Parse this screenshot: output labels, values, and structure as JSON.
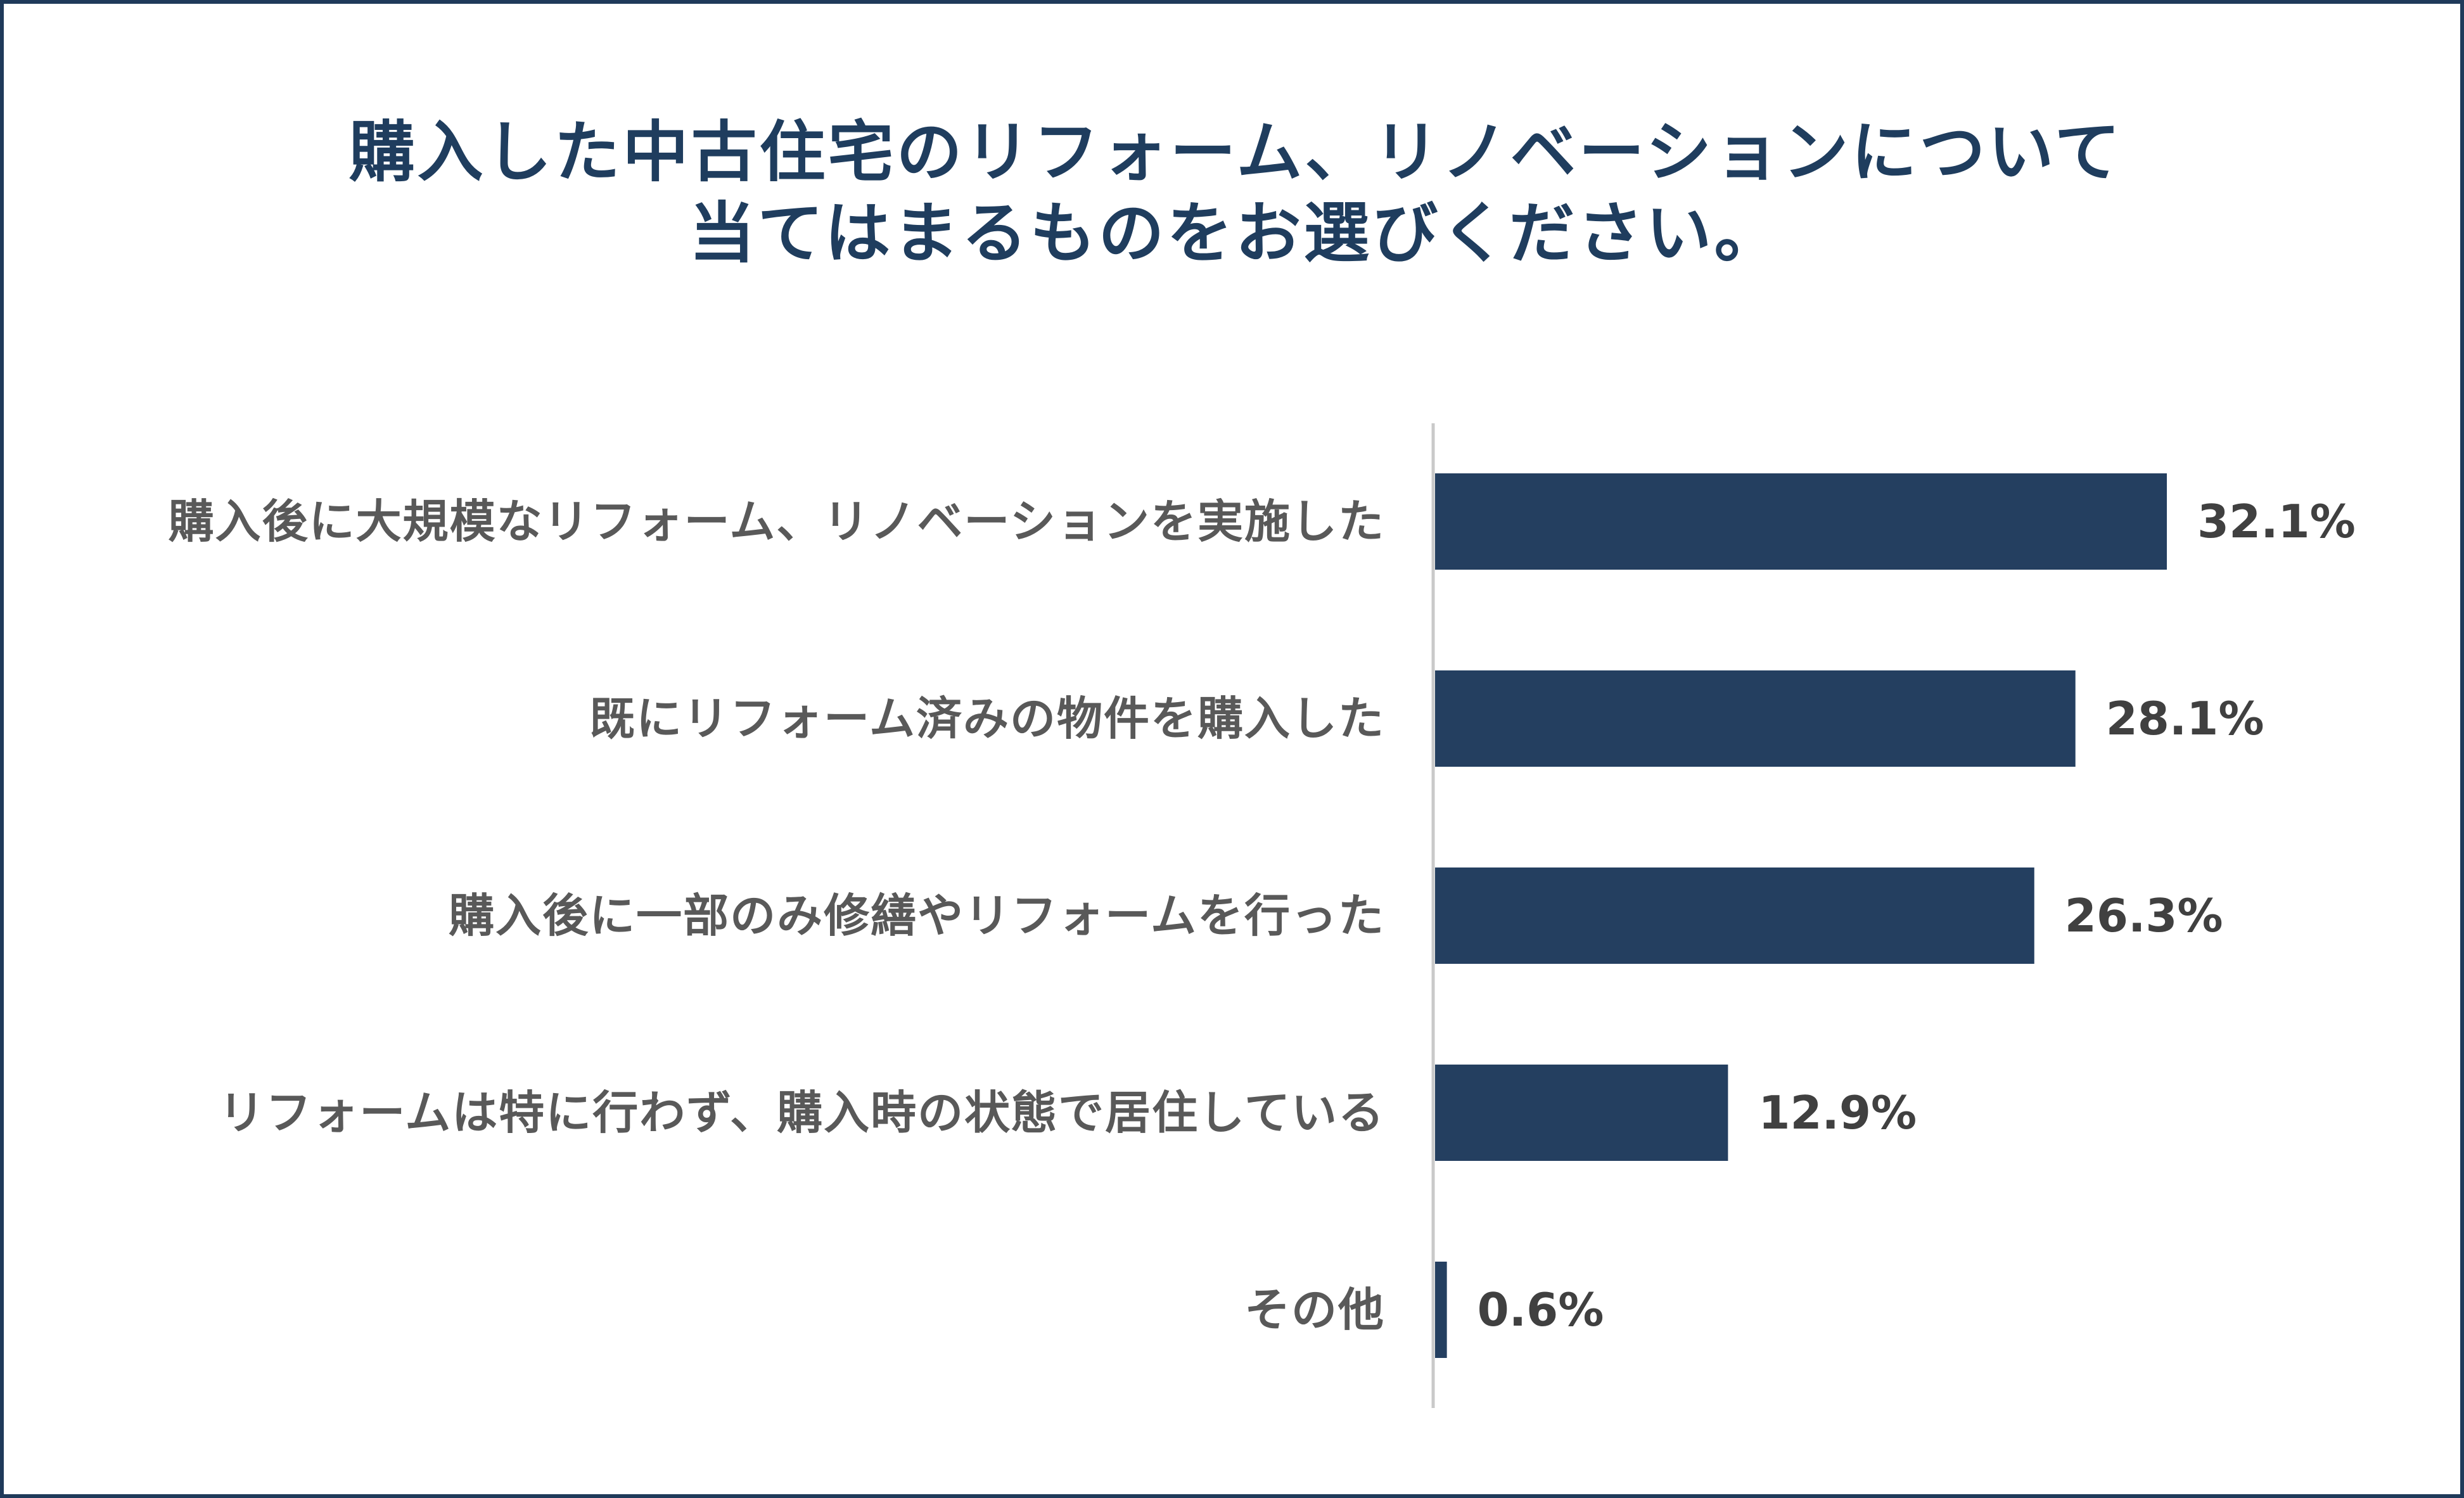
{
  "chart_data": {
    "type": "bar",
    "orientation": "horizontal",
    "title_lines": [
      "購入した中古住宅のリフォーム、リノベーションについて",
      "当てはまるものをお選びください。"
    ],
    "categories": [
      "購入後に大規模なリフォーム、リノベーションを実施した",
      "既にリフォーム済みの物件を購入した",
      "購入後に一部のみ修繕やリフォームを行った",
      "リフォームは特に行わず、購入時の状態で居住している",
      "その他"
    ],
    "values": [
      32.1,
      28.1,
      26.3,
      12.9,
      0.6
    ],
    "value_labels": [
      "32.1%",
      "28.1%",
      "26.3%",
      "12.9%",
      "0.6%"
    ],
    "unit": "%",
    "xlim": [
      0,
      40
    ],
    "grid": false,
    "legend": "none",
    "bar_color": "#243f60"
  }
}
